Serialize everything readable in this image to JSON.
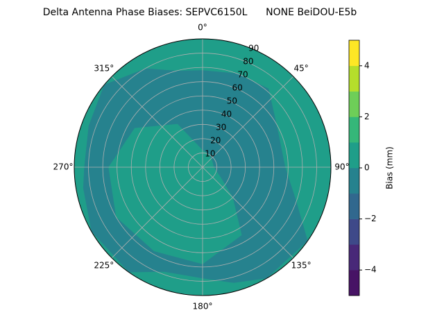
{
  "chart_data": {
    "type": "polar_contour",
    "title": "Delta Antenna Phase Biases: SEPVC6150L      NONE BeiDOU-E5b",
    "theta_ticks": [
      {
        "value": 0,
        "label": "0°"
      },
      {
        "value": 45,
        "label": "45°"
      },
      {
        "value": 90,
        "label": "90°"
      },
      {
        "value": 135,
        "label": "135°"
      },
      {
        "value": 180,
        "label": "180°"
      },
      {
        "value": 225,
        "label": "225°"
      },
      {
        "value": 270,
        "label": "270°"
      },
      {
        "value": 315,
        "label": "315°"
      }
    ],
    "rlim": [
      0,
      90
    ],
    "rticks": [
      10,
      20,
      30,
      40,
      50,
      60,
      70,
      80,
      90
    ],
    "grid": true,
    "base_level": 0,
    "regions": [
      {
        "level": -1,
        "outer": [
          [
            0,
            68
          ],
          [
            20,
            70
          ],
          [
            40,
            72
          ],
          [
            60,
            60
          ],
          [
            90,
            58
          ],
          [
            110,
            70
          ],
          [
            125,
            90
          ],
          [
            150,
            90
          ],
          [
            165,
            84
          ],
          [
            180,
            78
          ],
          [
            200,
            78
          ],
          [
            215,
            90
          ],
          [
            240,
            90
          ],
          [
            260,
            85
          ],
          [
            270,
            83
          ],
          [
            290,
            85
          ],
          [
            310,
            90
          ],
          [
            330,
            80
          ],
          [
            345,
            70
          ]
        ],
        "inner": [
          [
            0,
            12
          ],
          [
            30,
            10
          ],
          [
            60,
            8
          ],
          [
            90,
            8
          ],
          [
            120,
            15
          ],
          [
            135,
            30
          ],
          [
            150,
            55
          ],
          [
            180,
            68
          ],
          [
            210,
            68
          ],
          [
            240,
            70
          ],
          [
            270,
            66
          ],
          [
            300,
            55
          ],
          [
            330,
            35
          ]
        ]
      }
    ],
    "colorbar": {
      "label": "Bias (mm)",
      "levels": [
        -5,
        -4,
        -3,
        -2,
        -1,
        0,
        1,
        2,
        3,
        4,
        5
      ],
      "colors": [
        "#471365",
        "#482878",
        "#3e4989",
        "#31688e",
        "#26828e",
        "#1f9e89",
        "#35b779",
        "#6ece58",
        "#b5de2b",
        "#fde725"
      ],
      "ticks": [
        {
          "value": -4,
          "label": "−4"
        },
        {
          "value": -2,
          "label": "−2"
        },
        0,
        2,
        4
      ]
    }
  }
}
